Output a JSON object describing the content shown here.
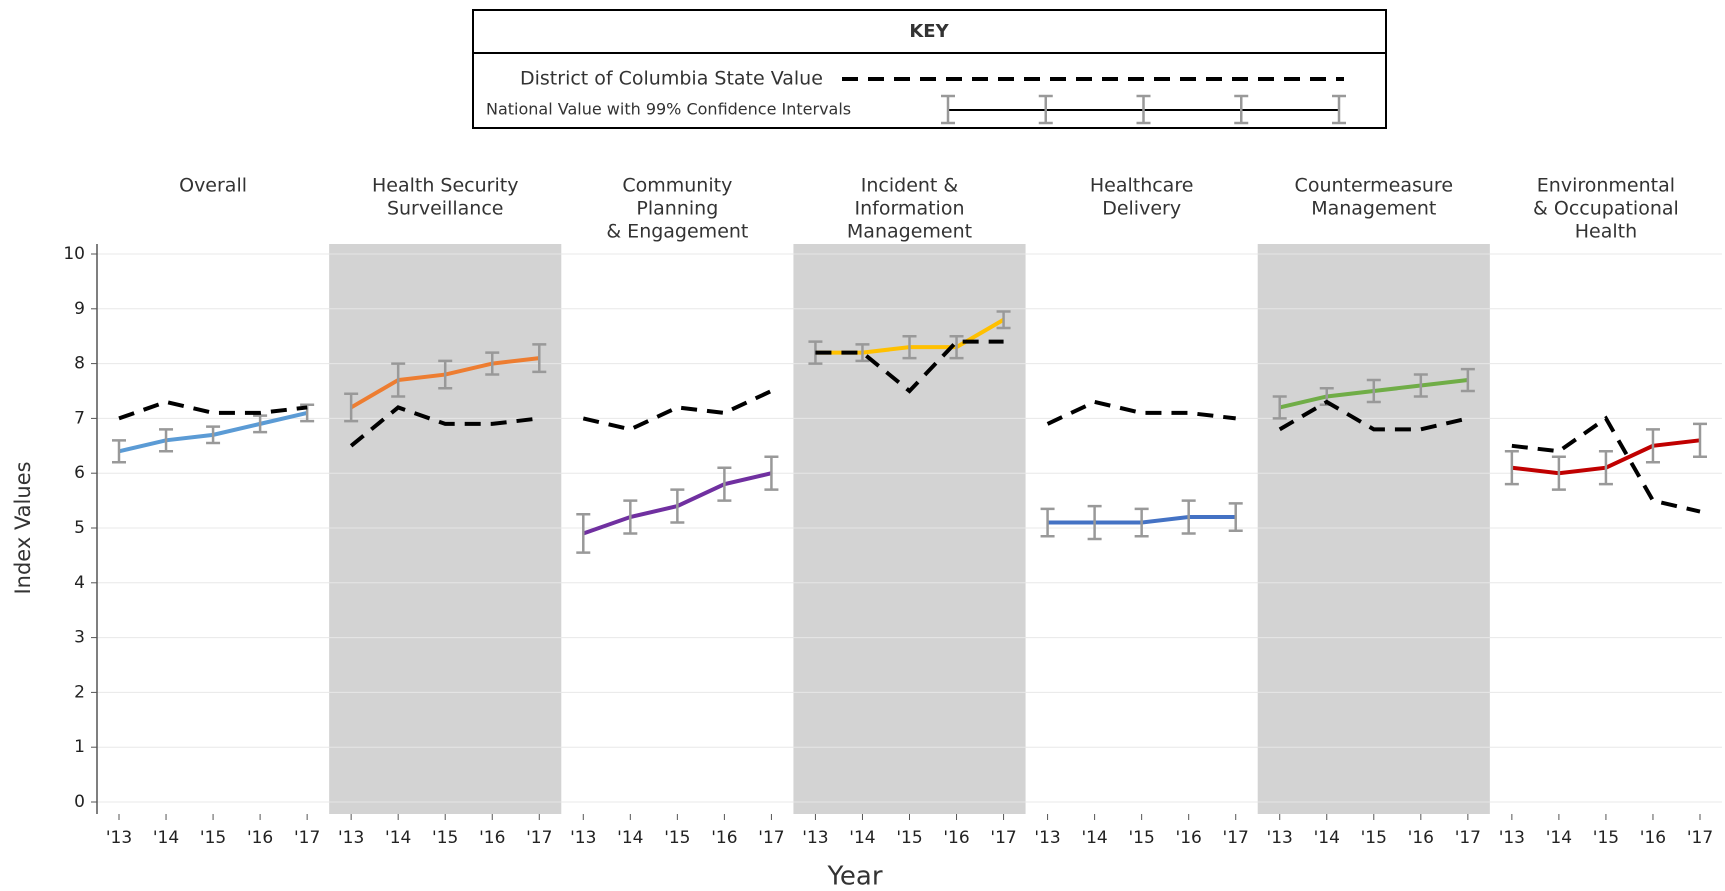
{
  "chart_data": {
    "type": "line",
    "key": {
      "title": "KEY",
      "state_label": "District of Columbia State Value",
      "national_label": "National Value with 99% Confidence Intervals"
    },
    "ylabel": "Index Values",
    "xlabel": "Year",
    "categories": [
      "'13",
      "'14",
      "'15",
      "'16",
      "'17"
    ],
    "ylim": [
      0,
      10
    ],
    "yticks": [
      0,
      1,
      2,
      3,
      4,
      5,
      6,
      7,
      8,
      9,
      10
    ],
    "grid": true,
    "state_color": "#000000",
    "error_color": "#999999",
    "shade_color": "#d3d3d3",
    "panels": [
      {
        "title": [
          "Overall"
        ],
        "color": "#5b9bd5",
        "shaded": false,
        "national": [
          6.4,
          6.6,
          6.7,
          6.9,
          7.1
        ],
        "errors": [
          0.2,
          0.2,
          0.15,
          0.15,
          0.15
        ],
        "state": [
          7.0,
          7.3,
          7.1,
          7.1,
          7.2
        ]
      },
      {
        "title": [
          "Health Security",
          "Surveillance"
        ],
        "color": "#ed7d31",
        "shaded": true,
        "national": [
          7.2,
          7.7,
          7.8,
          8.0,
          8.1
        ],
        "errors": [
          0.25,
          0.3,
          0.25,
          0.2,
          0.25
        ],
        "state": [
          6.5,
          7.2,
          6.9,
          6.9,
          7.0
        ]
      },
      {
        "title": [
          "Community",
          "Planning",
          "& Engagement"
        ],
        "color": "#7030a0",
        "shaded": false,
        "national": [
          4.9,
          5.2,
          5.4,
          5.8,
          6.0
        ],
        "errors": [
          0.35,
          0.3,
          0.3,
          0.3,
          0.3
        ],
        "state": [
          7.0,
          6.8,
          7.2,
          7.1,
          7.5
        ]
      },
      {
        "title": [
          "Incident &",
          "Information",
          "Management"
        ],
        "color": "#ffc000",
        "shaded": true,
        "national": [
          8.2,
          8.2,
          8.3,
          8.3,
          8.8
        ],
        "errors": [
          0.2,
          0.15,
          0.2,
          0.2,
          0.15
        ],
        "state": [
          8.2,
          8.2,
          7.5,
          8.4,
          8.4
        ]
      },
      {
        "title": [
          "Healthcare",
          "Delivery"
        ],
        "color": "#4472c4",
        "shaded": false,
        "national": [
          5.1,
          5.1,
          5.1,
          5.2,
          5.2
        ],
        "errors": [
          0.25,
          0.3,
          0.25,
          0.3,
          0.25
        ],
        "state": [
          6.9,
          7.3,
          7.1,
          7.1,
          7.0
        ]
      },
      {
        "title": [
          "Countermeasure",
          "Management"
        ],
        "color": "#70ad47",
        "shaded": true,
        "national": [
          7.2,
          7.4,
          7.5,
          7.6,
          7.7
        ],
        "errors": [
          0.2,
          0.15,
          0.2,
          0.2,
          0.2
        ],
        "state": [
          6.8,
          7.3,
          6.8,
          6.8,
          7.0
        ]
      },
      {
        "title": [
          "Environmental",
          "& Occupational",
          "Health"
        ],
        "color": "#c00000",
        "shaded": false,
        "national": [
          6.1,
          6.0,
          6.1,
          6.5,
          6.6
        ],
        "errors": [
          0.3,
          0.3,
          0.3,
          0.3,
          0.3
        ],
        "state": [
          6.5,
          6.4,
          7.0,
          5.5,
          5.3
        ]
      }
    ]
  }
}
